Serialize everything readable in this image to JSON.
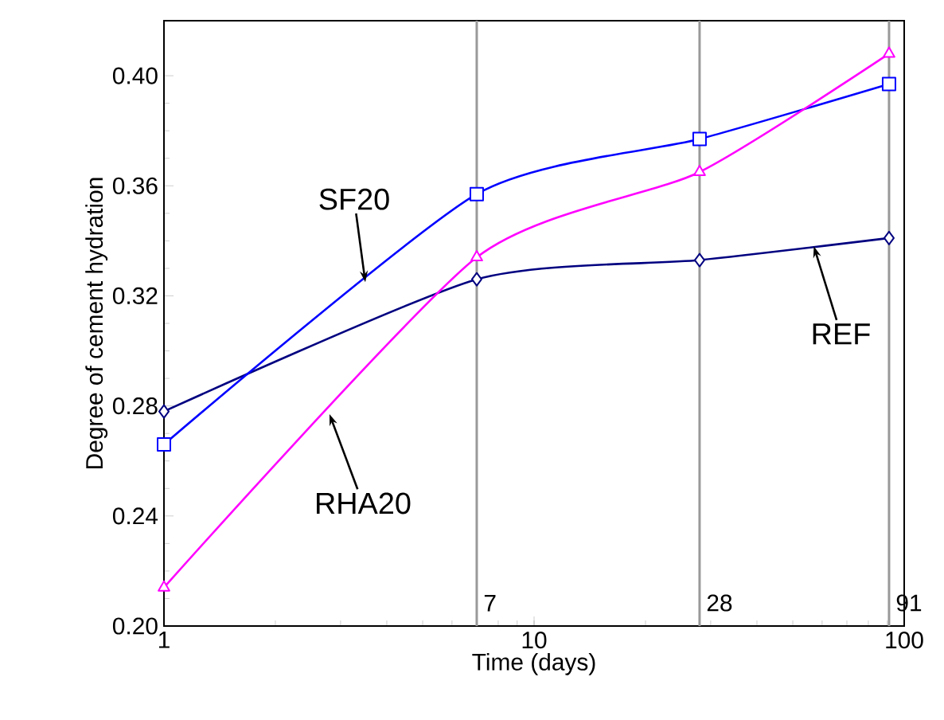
{
  "chart_data": {
    "type": "line",
    "xlabel": "Time (days)",
    "ylabel": "Degree of cement hydration",
    "x": [
      1,
      7,
      28,
      91
    ],
    "log": "x",
    "xlim": [
      1,
      100
    ],
    "xticks": [
      1,
      10,
      100
    ],
    "ylim": [
      0.2,
      0.42
    ],
    "yticks": [
      {
        "value": 0.2,
        "label": "0.20"
      },
      0.24,
      0.28,
      0.32,
      0.36,
      {
        "value": 0.4,
        "label": "0.40"
      }
    ],
    "series": [
      {
        "color": "#000080",
        "marker": "diamond",
        "values": [
          0.278,
          0.326,
          0.333,
          0.341
        ]
      },
      {
        "color": "#0000ff",
        "marker": "square",
        "values": [
          0.266,
          0.357,
          0.377,
          0.397
        ]
      },
      {
        "color": "#ff00ff",
        "marker": "triangle",
        "values": [
          0.214,
          0.334,
          0.365,
          0.408
        ]
      }
    ],
    "ref_lines": [
      {
        "axis": "x",
        "value": 7,
        "label": "7",
        "color": "#999999"
      },
      {
        "axis": "x",
        "value": 28,
        "label": "28",
        "color": "#999999"
      },
      {
        "axis": "x",
        "value": 91,
        "label": "91",
        "color": "#999999"
      }
    ],
    "annotations": [
      {
        "text": "SF20",
        "x": 3.5,
        "y": 0.325
      },
      {
        "text": "RHA20",
        "x": 2.8,
        "y": 0.277
      },
      {
        "text": "REF",
        "x": 57,
        "y": 0.338
      }
    ]
  }
}
